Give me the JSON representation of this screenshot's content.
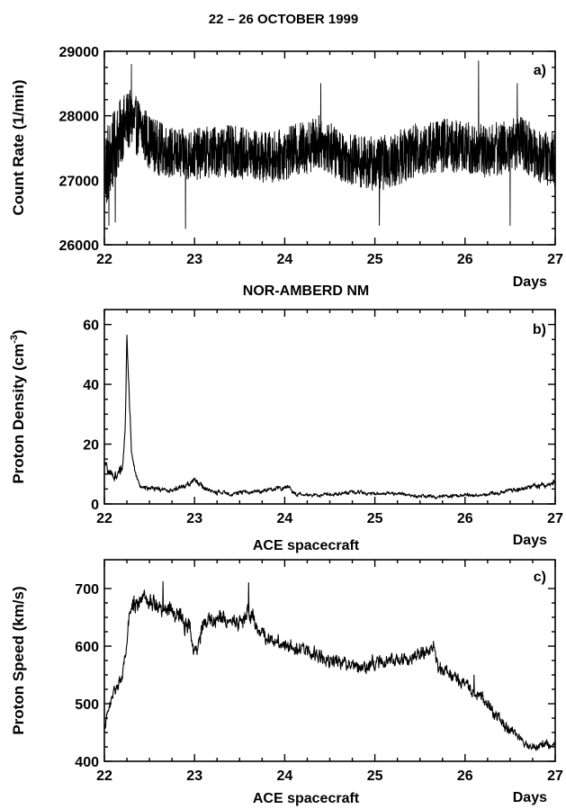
{
  "figure": {
    "title": "22 – 26 OCTOBER 1999"
  },
  "chart_data": [
    {
      "id": "a",
      "type": "line",
      "panel_label": "a)",
      "ylabel": "Count Rate (1/min)",
      "xlabel_right": "Days",
      "below_label": "NOR-AMBERD NM",
      "xlim": [
        22,
        27
      ],
      "ylim": [
        26000,
        29000
      ],
      "xticks": [
        22,
        23,
        24,
        25,
        26,
        27
      ],
      "yticks": [
        26000,
        27000,
        28000,
        29000
      ],
      "envelope": {
        "x": [
          22.0,
          22.05,
          22.1,
          22.15,
          22.2,
          22.25,
          22.3,
          22.35,
          22.4,
          22.5,
          22.6,
          22.7,
          22.8,
          23.0,
          23.2,
          23.4,
          23.6,
          23.8,
          24.0,
          24.2,
          24.4,
          24.6,
          24.8,
          25.0,
          25.2,
          25.4,
          25.6,
          25.8,
          26.0,
          26.2,
          26.4,
          26.6,
          26.8,
          27.0
        ],
        "mid": [
          27200,
          27300,
          27450,
          27650,
          27800,
          27900,
          27950,
          27850,
          27800,
          27600,
          27500,
          27450,
          27400,
          27400,
          27450,
          27450,
          27400,
          27350,
          27400,
          27500,
          27600,
          27400,
          27300,
          27250,
          27300,
          27450,
          27500,
          27550,
          27500,
          27450,
          27500,
          27600,
          27400,
          27300
        ],
        "amplitude": [
          700,
          650,
          600,
          550,
          500,
          480,
          450,
          450,
          450,
          420,
          420,
          400,
          400,
          400,
          400,
          400,
          400,
          400,
          400,
          420,
          420,
          400,
          400,
          420,
          420,
          420,
          420,
          420,
          420,
          420,
          420,
          420,
          420,
          420
        ]
      },
      "spikes": [
        {
          "x": 22.05,
          "y": 26300
        },
        {
          "x": 22.12,
          "y": 26350
        },
        {
          "x": 22.3,
          "y": 28800
        },
        {
          "x": 22.9,
          "y": 26250
        },
        {
          "x": 24.4,
          "y": 28500
        },
        {
          "x": 25.05,
          "y": 26300
        },
        {
          "x": 26.15,
          "y": 28850
        },
        {
          "x": 26.5,
          "y": 26300
        },
        {
          "x": 26.58,
          "y": 28500
        }
      ],
      "samples": 2400,
      "stroke_width": 0.9
    },
    {
      "id": "b",
      "type": "line",
      "panel_label": "b)",
      "ylabel": "Proton Density (cm",
      "ylabel_sup": "-3",
      "ylabel_tail": ")",
      "xlabel_right": "Days",
      "below_label": "ACE spacecraft",
      "xlim": [
        22,
        27
      ],
      "ylim": [
        0,
        65
      ],
      "xticks": [
        22,
        23,
        24,
        25,
        26,
        27
      ],
      "yticks": [
        0,
        20,
        40,
        60
      ],
      "envelope": {
        "x": [
          22.0,
          22.05,
          22.1,
          22.15,
          22.2,
          22.23,
          22.25,
          22.27,
          22.3,
          22.35,
          22.4,
          22.5,
          22.6,
          22.7,
          22.8,
          22.9,
          23.0,
          23.1,
          23.2,
          23.4,
          23.6,
          23.8,
          24.0,
          24.05,
          24.1,
          24.2,
          24.4,
          24.6,
          24.8,
          25.0,
          25.2,
          25.4,
          25.6,
          25.8,
          26.0,
          26.2,
          26.4,
          26.6,
          26.8,
          27.0
        ],
        "mid": [
          13,
          11,
          9,
          10,
          12,
          25,
          57,
          40,
          18,
          9,
          6,
          5,
          5,
          4.5,
          5,
          6,
          8,
          5.5,
          4,
          3.5,
          4,
          4.5,
          5.5,
          6,
          3.5,
          3,
          3,
          3.5,
          4,
          3.5,
          3.5,
          3,
          2.5,
          2.5,
          3,
          3,
          4,
          5,
          6,
          7
        ],
        "amplitude": [
          1.5,
          1.5,
          1.5,
          1.5,
          1.5,
          2,
          2,
          2,
          1.5,
          1,
          0.8,
          0.8,
          0.8,
          0.8,
          0.8,
          0.8,
          1,
          0.8,
          0.7,
          0.7,
          0.7,
          0.7,
          0.8,
          0.8,
          0.7,
          0.6,
          0.6,
          0.6,
          0.6,
          0.6,
          0.6,
          0.6,
          0.6,
          0.6,
          0.6,
          0.6,
          0.7,
          0.8,
          0.9,
          1
        ]
      },
      "spikes": [],
      "samples": 1400,
      "stroke_width": 1.1
    },
    {
      "id": "c",
      "type": "line",
      "panel_label": "c)",
      "ylabel": "Proton Speed (km/s)",
      "xlabel_right": "Days",
      "below_label": "ACE spacecraft",
      "xlim": [
        22,
        27
      ],
      "ylim": [
        400,
        750
      ],
      "xticks": [
        22,
        23,
        24,
        25,
        26,
        27
      ],
      "yticks": [
        400,
        500,
        600,
        700
      ],
      "envelope": {
        "x": [
          22.0,
          22.1,
          22.15,
          22.2,
          22.25,
          22.3,
          22.4,
          22.6,
          22.8,
          22.95,
          23.0,
          23.1,
          23.3,
          23.5,
          23.6,
          23.7,
          23.8,
          24.0,
          24.2,
          24.4,
          24.6,
          24.8,
          25.0,
          25.2,
          25.4,
          25.6,
          25.65,
          25.7,
          25.8,
          26.0,
          26.2,
          26.4,
          26.6,
          26.7,
          26.8,
          27.0
        ],
        "mid": [
          460,
          520,
          535,
          545,
          610,
          670,
          680,
          670,
          655,
          630,
          580,
          640,
          650,
          640,
          660,
          630,
          615,
          605,
          595,
          580,
          575,
          565,
          570,
          575,
          580,
          590,
          605,
          560,
          555,
          535,
          510,
          470,
          440,
          425,
          430,
          425
        ],
        "amplitude": [
          8,
          10,
          8,
          10,
          12,
          15,
          15,
          15,
          15,
          15,
          12,
          14,
          14,
          14,
          14,
          13,
          13,
          13,
          13,
          12,
          12,
          12,
          12,
          12,
          12,
          12,
          12,
          12,
          10,
          10,
          10,
          10,
          8,
          8,
          8,
          8
        ]
      },
      "spikes": [
        {
          "x": 22.65,
          "y": 712
        },
        {
          "x": 23.6,
          "y": 710
        },
        {
          "x": 26.1,
          "y": 550
        }
      ],
      "samples": 1400,
      "stroke_width": 1.1
    }
  ]
}
